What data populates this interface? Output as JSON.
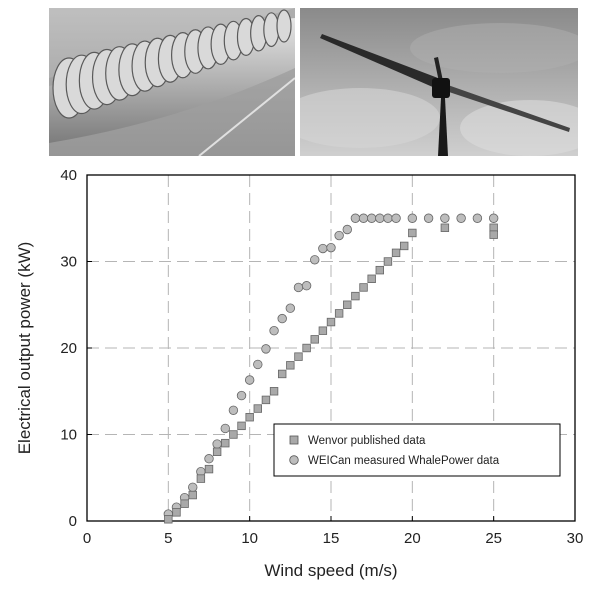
{
  "photos": [
    {
      "name": "tubercle-blade-photo",
      "subject": "close-up of a wind turbine blade with scalloped tubercle leading edge"
    },
    {
      "name": "wind-turbine-photo",
      "subject": "small wind turbine with long blades against a cloudy sky"
    }
  ],
  "chart_data": {
    "type": "scatter",
    "title": "",
    "xlabel": "Wind speed (m/s)",
    "ylabel": "Electrical output power (kW)",
    "xlim": [
      0,
      30
    ],
    "ylim": [
      0,
      40
    ],
    "xticks": [
      0,
      5,
      10,
      15,
      20,
      25,
      30
    ],
    "yticks": [
      0,
      10,
      20,
      30,
      40
    ],
    "grid": "dashed",
    "legend_position": "lower-right",
    "series": [
      {
        "name": "Wenvor published data",
        "marker": "square",
        "color": "#a9a9a9",
        "points": [
          [
            5.0,
            0.2
          ],
          [
            5.5,
            1.0
          ],
          [
            6.0,
            2.0
          ],
          [
            6.5,
            3.0
          ],
          [
            7.0,
            4.9
          ],
          [
            7.5,
            6.0
          ],
          [
            8.0,
            8.0
          ],
          [
            8.5,
            9.0
          ],
          [
            9.0,
            10.0
          ],
          [
            9.5,
            11.0
          ],
          [
            10.0,
            12.0
          ],
          [
            10.5,
            13.0
          ],
          [
            11.0,
            14.0
          ],
          [
            11.5,
            15.0
          ],
          [
            12.0,
            17.0
          ],
          [
            12.5,
            18.0
          ],
          [
            13.0,
            19.0
          ],
          [
            13.5,
            20.0
          ],
          [
            14.0,
            21.0
          ],
          [
            14.5,
            22.0
          ],
          [
            15.0,
            23.0
          ],
          [
            15.5,
            24.0
          ],
          [
            16.0,
            25.0
          ],
          [
            16.5,
            26.0
          ],
          [
            17.0,
            27.0
          ],
          [
            17.5,
            28.0
          ],
          [
            18.0,
            29.0
          ],
          [
            18.5,
            30.0
          ],
          [
            19.0,
            31.0
          ],
          [
            19.5,
            31.8
          ],
          [
            20.0,
            33.3
          ],
          [
            22.0,
            33.9
          ],
          [
            25.0,
            33.9
          ],
          [
            25.0,
            33.1
          ]
        ]
      },
      {
        "name": "WEICan measured WhalePower data",
        "marker": "circle",
        "color": "#bdbdbd",
        "points": [
          [
            5.0,
            0.8
          ],
          [
            5.5,
            1.6
          ],
          [
            6.0,
            2.7
          ],
          [
            6.5,
            3.9
          ],
          [
            7.0,
            5.7
          ],
          [
            7.5,
            7.2
          ],
          [
            8.0,
            8.9
          ],
          [
            8.5,
            10.7
          ],
          [
            9.0,
            12.8
          ],
          [
            9.5,
            14.5
          ],
          [
            10.0,
            16.3
          ],
          [
            10.5,
            18.1
          ],
          [
            11.0,
            19.9
          ],
          [
            11.5,
            22.0
          ],
          [
            12.0,
            23.4
          ],
          [
            12.5,
            24.6
          ],
          [
            13.0,
            27.0
          ],
          [
            13.5,
            27.2
          ],
          [
            14.0,
            30.2
          ],
          [
            14.5,
            31.5
          ],
          [
            15.0,
            31.6
          ],
          [
            15.5,
            33.0
          ],
          [
            16.0,
            33.7
          ],
          [
            16.5,
            35.0
          ],
          [
            17.0,
            35.0
          ],
          [
            17.5,
            35.0
          ],
          [
            18.0,
            35.0
          ],
          [
            18.5,
            35.0
          ],
          [
            19.0,
            35.0
          ],
          [
            20.0,
            35.0
          ],
          [
            21.0,
            35.0
          ],
          [
            22.0,
            35.0
          ],
          [
            23.0,
            35.0
          ],
          [
            24.0,
            35.0
          ],
          [
            25.0,
            35.0
          ]
        ]
      }
    ]
  }
}
